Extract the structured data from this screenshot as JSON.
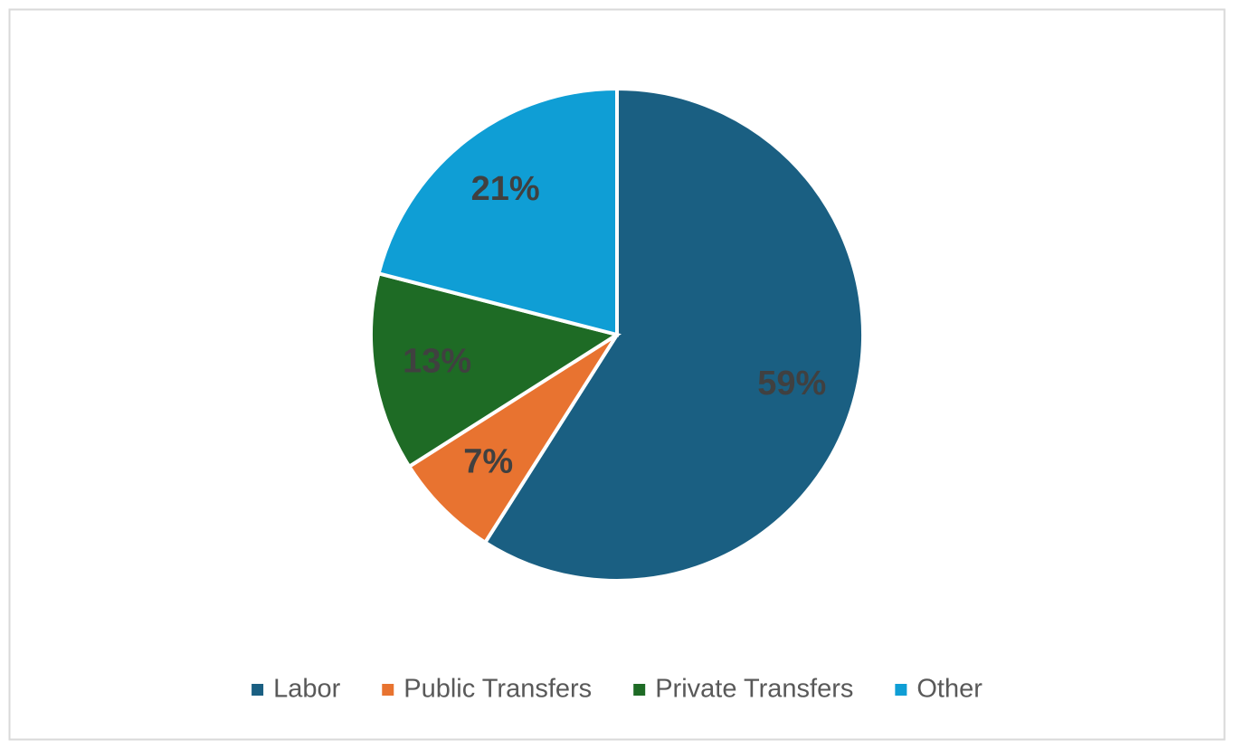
{
  "chart_data": {
    "type": "pie",
    "categories": [
      "Labor",
      "Public Transfers",
      "Private Transfers",
      "Other"
    ],
    "values": [
      59,
      7,
      13,
      21
    ],
    "value_labels": [
      "59%",
      "7%",
      "13%",
      "21%"
    ],
    "colors": [
      "#1a5f82",
      "#e87330",
      "#1e6b25",
      "#0f9ed5"
    ],
    "legend": "bottom"
  }
}
